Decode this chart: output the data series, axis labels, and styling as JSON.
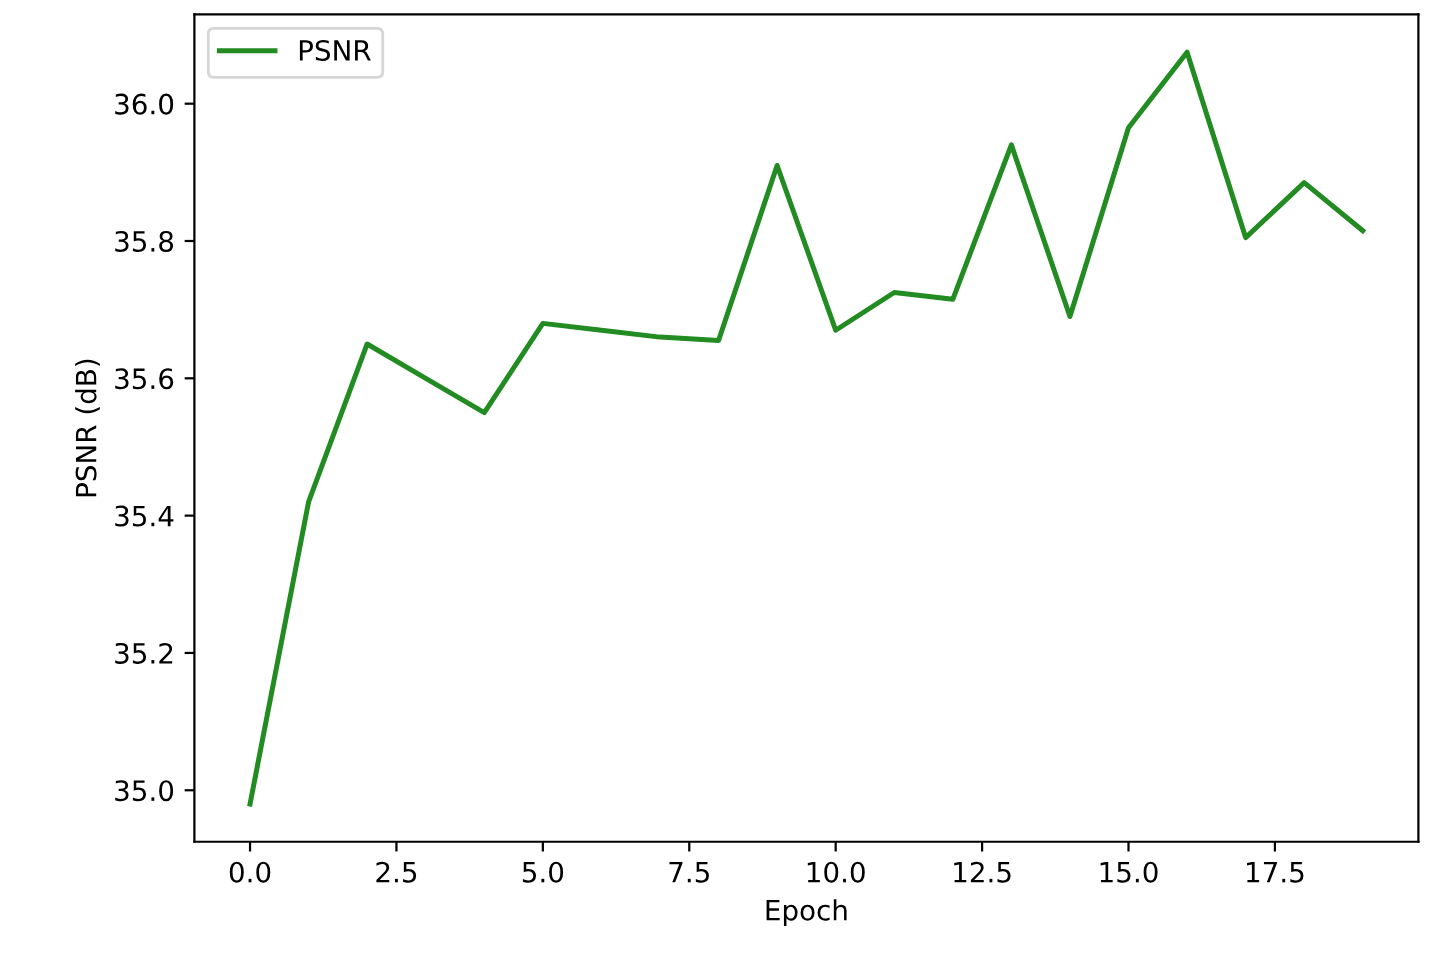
{
  "chart_data": {
    "type": "line",
    "xlabel": "Epoch",
    "ylabel": "PSNR (dB)",
    "x": [
      0,
      1,
      2,
      3,
      4,
      5,
      6,
      7,
      8,
      9,
      10,
      11,
      12,
      13,
      14,
      15,
      16,
      17,
      18,
      19
    ],
    "series": [
      {
        "name": "PSNR",
        "color": "#228b22",
        "values": [
          34.98,
          35.42,
          35.65,
          35.6,
          35.55,
          35.68,
          35.67,
          35.66,
          35.655,
          35.91,
          35.67,
          35.725,
          35.715,
          35.94,
          35.69,
          35.965,
          36.075,
          35.805,
          35.885,
          35.815
        ]
      }
    ],
    "xlim": [
      -0.95,
      19.95
    ],
    "ylim": [
      34.925,
      36.13
    ],
    "xticks": [
      {
        "value": 0,
        "label": "0.0"
      },
      {
        "value": 2.5,
        "label": "2.5"
      },
      {
        "value": 5,
        "label": "5.0"
      },
      {
        "value": 7.5,
        "label": "7.5"
      },
      {
        "value": 10,
        "label": "10.0"
      },
      {
        "value": 12.5,
        "label": "12.5"
      },
      {
        "value": 15,
        "label": "15.0"
      },
      {
        "value": 17.5,
        "label": "17.5"
      }
    ],
    "yticks": [
      {
        "value": 35,
        "label": "35.0"
      },
      35.2,
      35.4,
      35.6,
      35.8,
      {
        "value": 36,
        "label": "36.0"
      }
    ],
    "legend": "top left",
    "grid": false,
    "marker": "none",
    "line_style": "solid"
  }
}
